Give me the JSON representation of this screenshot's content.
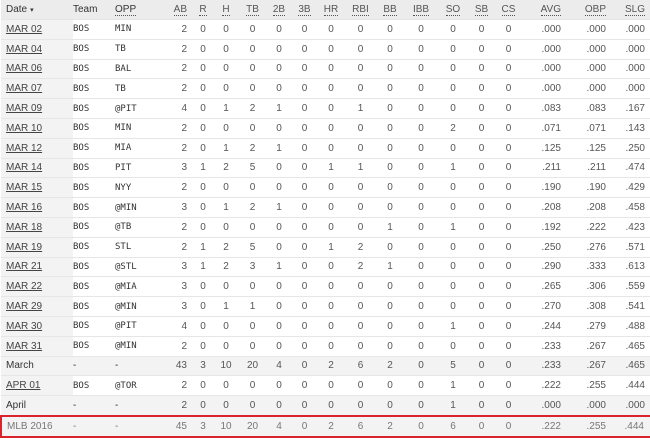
{
  "columns": [
    "Date",
    "Team",
    "OPP",
    "AB",
    "R",
    "H",
    "TB",
    "2B",
    "3B",
    "HR",
    "RBI",
    "BB",
    "IBB",
    "SO",
    "SB",
    "CS",
    "AVG",
    "OBP",
    "SLG"
  ],
  "sort_indicator": "▾",
  "highlight_color": "#d9232e",
  "rows": [
    {
      "type": "game",
      "cells": [
        "MAR 02",
        "BOS",
        "MIN",
        "2",
        "0",
        "0",
        "0",
        "0",
        "0",
        "0",
        "0",
        "0",
        "0",
        "0",
        "0",
        "0",
        ".000",
        ".000",
        ".000"
      ]
    },
    {
      "type": "game",
      "cells": [
        "MAR 04",
        "BOS",
        "TB",
        "2",
        "0",
        "0",
        "0",
        "0",
        "0",
        "0",
        "0",
        "0",
        "0",
        "0",
        "0",
        "0",
        ".000",
        ".000",
        ".000"
      ]
    },
    {
      "type": "game",
      "cells": [
        "MAR 06",
        "BOS",
        "BAL",
        "2",
        "0",
        "0",
        "0",
        "0",
        "0",
        "0",
        "0",
        "0",
        "0",
        "0",
        "0",
        "0",
        ".000",
        ".000",
        ".000"
      ]
    },
    {
      "type": "game",
      "cells": [
        "MAR 07",
        "BOS",
        "TB",
        "2",
        "0",
        "0",
        "0",
        "0",
        "0",
        "0",
        "0",
        "0",
        "0",
        "0",
        "0",
        "0",
        ".000",
        ".000",
        ".000"
      ]
    },
    {
      "type": "game",
      "cells": [
        "MAR 09",
        "BOS",
        "@PIT",
        "4",
        "0",
        "1",
        "2",
        "1",
        "0",
        "0",
        "1",
        "0",
        "0",
        "0",
        "0",
        "0",
        ".083",
        ".083",
        ".167"
      ]
    },
    {
      "type": "game",
      "cells": [
        "MAR 10",
        "BOS",
        "MIN",
        "2",
        "0",
        "0",
        "0",
        "0",
        "0",
        "0",
        "0",
        "0",
        "0",
        "2",
        "0",
        "0",
        ".071",
        ".071",
        ".143"
      ]
    },
    {
      "type": "game",
      "cells": [
        "MAR 12",
        "BOS",
        "MIA",
        "2",
        "0",
        "1",
        "2",
        "1",
        "0",
        "0",
        "0",
        "0",
        "0",
        "0",
        "0",
        "0",
        ".125",
        ".125",
        ".250"
      ]
    },
    {
      "type": "game",
      "cells": [
        "MAR 14",
        "BOS",
        "PIT",
        "3",
        "1",
        "2",
        "5",
        "0",
        "0",
        "1",
        "1",
        "0",
        "0",
        "1",
        "0",
        "0",
        ".211",
        ".211",
        ".474"
      ]
    },
    {
      "type": "game",
      "cells": [
        "MAR 15",
        "BOS",
        "NYY",
        "2",
        "0",
        "0",
        "0",
        "0",
        "0",
        "0",
        "0",
        "0",
        "0",
        "0",
        "0",
        "0",
        ".190",
        ".190",
        ".429"
      ]
    },
    {
      "type": "game",
      "cells": [
        "MAR 16",
        "BOS",
        "@MIN",
        "3",
        "0",
        "1",
        "2",
        "1",
        "0",
        "0",
        "0",
        "0",
        "0",
        "0",
        "0",
        "0",
        ".208",
        ".208",
        ".458"
      ]
    },
    {
      "type": "game",
      "cells": [
        "MAR 18",
        "BOS",
        "@TB",
        "2",
        "0",
        "0",
        "0",
        "0",
        "0",
        "0",
        "0",
        "1",
        "0",
        "1",
        "0",
        "0",
        ".192",
        ".222",
        ".423"
      ]
    },
    {
      "type": "game",
      "cells": [
        "MAR 19",
        "BOS",
        "STL",
        "2",
        "1",
        "2",
        "5",
        "0",
        "0",
        "1",
        "2",
        "0",
        "0",
        "0",
        "0",
        "0",
        ".250",
        ".276",
        ".571"
      ]
    },
    {
      "type": "game",
      "cells": [
        "MAR 21",
        "BOS",
        "@STL",
        "3",
        "1",
        "2",
        "3",
        "1",
        "0",
        "0",
        "2",
        "1",
        "0",
        "0",
        "0",
        "0",
        ".290",
        ".333",
        ".613"
      ]
    },
    {
      "type": "game",
      "cells": [
        "MAR 22",
        "BOS",
        "@MIA",
        "3",
        "0",
        "0",
        "0",
        "0",
        "0",
        "0",
        "0",
        "0",
        "0",
        "0",
        "0",
        "0",
        ".265",
        ".306",
        ".559"
      ]
    },
    {
      "type": "game",
      "cells": [
        "MAR 29",
        "BOS",
        "@MIN",
        "3",
        "0",
        "1",
        "1",
        "0",
        "0",
        "0",
        "0",
        "0",
        "0",
        "0",
        "0",
        "0",
        ".270",
        ".308",
        ".541"
      ]
    },
    {
      "type": "game",
      "cells": [
        "MAR 30",
        "BOS",
        "@PIT",
        "4",
        "0",
        "0",
        "0",
        "0",
        "0",
        "0",
        "0",
        "0",
        "0",
        "1",
        "0",
        "0",
        ".244",
        ".279",
        ".488"
      ]
    },
    {
      "type": "game",
      "cells": [
        "MAR 31",
        "BOS",
        "@MIN",
        "2",
        "0",
        "0",
        "0",
        "0",
        "0",
        "0",
        "0",
        "0",
        "0",
        "0",
        "0",
        "0",
        ".233",
        ".267",
        ".465"
      ]
    },
    {
      "type": "summary",
      "cells": [
        "March",
        "-",
        "-",
        "43",
        "3",
        "10",
        "20",
        "4",
        "0",
        "2",
        "6",
        "2",
        "0",
        "5",
        "0",
        "0",
        ".233",
        ".267",
        ".465"
      ]
    },
    {
      "type": "game",
      "cells": [
        "APR 01",
        "BOS",
        "@TOR",
        "2",
        "0",
        "0",
        "0",
        "0",
        "0",
        "0",
        "0",
        "0",
        "0",
        "1",
        "0",
        "0",
        ".222",
        ".255",
        ".444"
      ]
    },
    {
      "type": "summary",
      "cells": [
        "April",
        "-",
        "-",
        "2",
        "0",
        "0",
        "0",
        "0",
        "0",
        "0",
        "0",
        "0",
        "0",
        "1",
        "0",
        "0",
        ".000",
        ".000",
        ".000"
      ]
    },
    {
      "type": "total",
      "cells": [
        "MLB 2016",
        "-",
        "-",
        "45",
        "3",
        "10",
        "20",
        "4",
        "0",
        "2",
        "6",
        "2",
        "0",
        "6",
        "0",
        "0",
        ".222",
        ".255",
        ".444"
      ]
    }
  ]
}
